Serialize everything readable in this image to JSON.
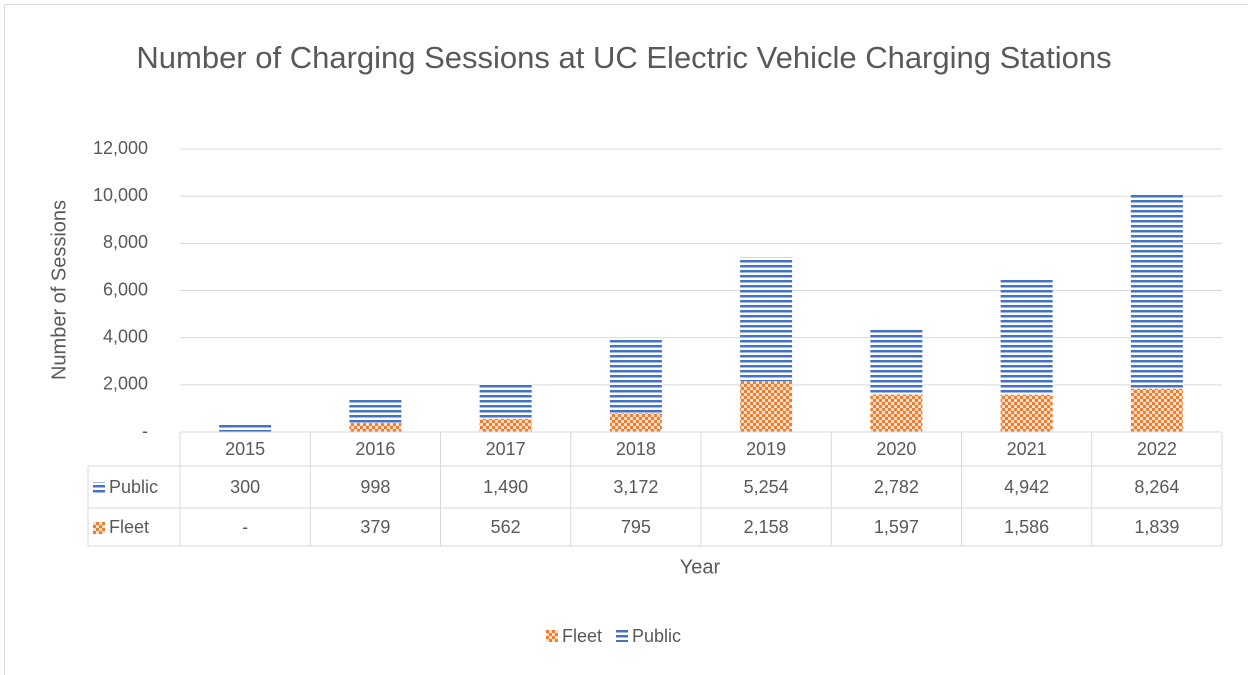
{
  "chart_data": {
    "type": "stacked_bar",
    "title": "Number of Charging Sessions at UC Electric Vehicle Charging Stations",
    "x_label": "Year",
    "y_label": "Number of Sessions",
    "categories": [
      "2015",
      "2016",
      "2017",
      "2018",
      "2019",
      "2020",
      "2021",
      "2022"
    ],
    "series": [
      {
        "name": "Fleet",
        "color": "#ed7d31",
        "values": [
          0,
          379,
          562,
          795,
          2158,
          1597,
          1586,
          1839
        ],
        "value_labels": [
          "-",
          "379",
          "562",
          "795",
          "2,158",
          "1,597",
          "1,586",
          "1,839"
        ]
      },
      {
        "name": "Public",
        "color": "#4472c4",
        "values": [
          300,
          998,
          1490,
          3172,
          5254,
          2782,
          4942,
          8264
        ],
        "value_labels": [
          "300",
          "998",
          "1,490",
          "3,172",
          "5,254",
          "2,782",
          "4,942",
          "8,264"
        ]
      }
    ],
    "ylim": [
      0,
      12000
    ],
    "yticks": [
      {
        "value": 0,
        "label": "-"
      },
      {
        "value": 2000,
        "label": "2,000"
      },
      {
        "value": 4000,
        "label": "4,000"
      },
      {
        "value": 6000,
        "label": "6,000"
      },
      {
        "value": 8000,
        "label": "8,000"
      },
      {
        "value": 10000,
        "label": "10,000"
      },
      {
        "value": 12000,
        "label": "12,000"
      }
    ],
    "grid": true,
    "legend": "bottom"
  }
}
